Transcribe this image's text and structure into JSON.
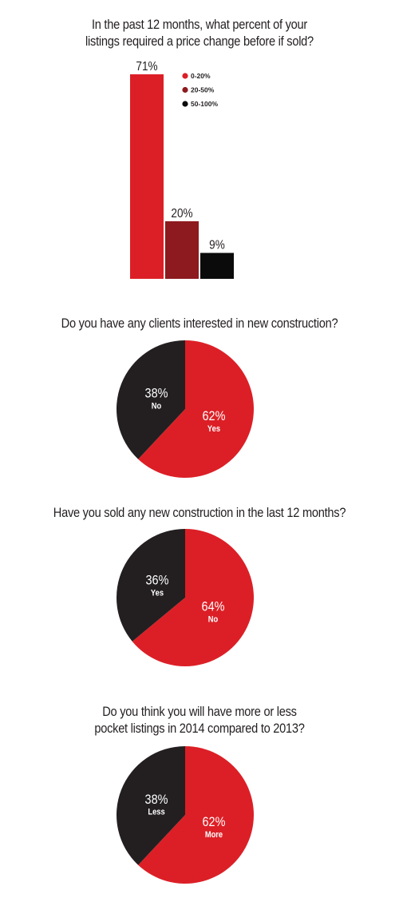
{
  "colors": {
    "red": "#dc1f26",
    "dark_red": "#8c1a1e",
    "black": "#0b0b0b",
    "charcoal": "#231f20",
    "white": "#ffffff"
  },
  "chart_data": [
    {
      "type": "bar",
      "title_lines": [
        "In the past 12 months, what percent of your",
        "listings required a price change before if sold?"
      ],
      "categories": [
        "0-20%",
        "20-50%",
        "50-100%"
      ],
      "values": [
        71,
        20,
        9
      ],
      "value_labels": [
        "71%",
        "20%",
        "9%"
      ],
      "colors": [
        "#dc1f26",
        "#8c1a1e",
        "#0b0b0b"
      ],
      "ylim": [
        0,
        71
      ],
      "legend": {
        "position": "top-right",
        "entries": [
          {
            "label": "0-20%",
            "color": "#dc1f26"
          },
          {
            "label": "20-50%",
            "color": "#8c1a1e"
          },
          {
            "label": "50-100%",
            "color": "#0b0b0b"
          }
        ]
      },
      "axes_visible": false,
      "grid": false
    },
    {
      "type": "pie",
      "title_lines": [
        "Do you have any clients interested in new construction?"
      ],
      "slices": [
        {
          "label": "Yes",
          "value": 62,
          "pct_label": "62%",
          "color": "#dc1f26"
        },
        {
          "label": "No",
          "value": 38,
          "pct_label": "38%",
          "color": "#231f20"
        }
      ]
    },
    {
      "type": "pie",
      "title_lines": [
        "Have you sold any new construction in the last 12 months?"
      ],
      "slices": [
        {
          "label": "No",
          "value": 64,
          "pct_label": "64%",
          "color": "#dc1f26"
        },
        {
          "label": "Yes",
          "value": 36,
          "pct_label": "36%",
          "color": "#231f20"
        }
      ]
    },
    {
      "type": "pie",
      "title_lines": [
        "Do you think you will have more or less",
        "pocket listings in 2014 compared to 2013?"
      ],
      "slices": [
        {
          "label": "More",
          "value": 62,
          "pct_label": "62%",
          "color": "#dc1f26"
        },
        {
          "label": "Less",
          "value": 38,
          "pct_label": "38%",
          "color": "#231f20"
        }
      ]
    }
  ]
}
